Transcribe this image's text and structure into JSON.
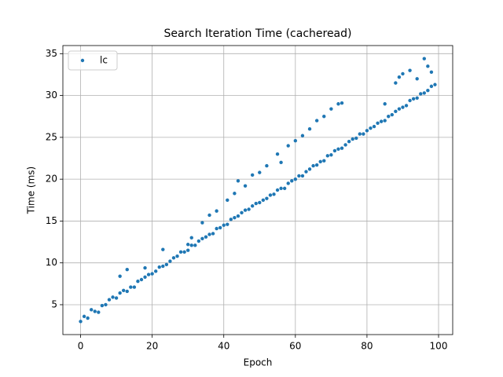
{
  "chart_data": {
    "type": "scatter",
    "title": "Search Iteration Time (cacheread)",
    "x_label": "Epoch",
    "y_label": "Time (ms)",
    "xlim": [
      -4.95,
      103.95
    ],
    "ylim": [
      1.43,
      35.97
    ],
    "xticks": [
      0,
      20,
      40,
      60,
      80,
      100
    ],
    "yticks": [
      5,
      10,
      15,
      20,
      25,
      30,
      35
    ],
    "grid": true,
    "legend": "upper left",
    "series": [
      {
        "name": "lc",
        "color": "#1f77b4",
        "x": [
          0,
          1,
          2,
          3,
          4,
          5,
          6,
          7,
          8,
          9,
          10,
          11,
          12,
          13,
          14,
          15,
          16,
          17,
          18,
          19,
          20,
          21,
          22,
          23,
          24,
          25,
          26,
          27,
          28,
          29,
          30,
          31,
          32,
          33,
          34,
          35,
          36,
          37,
          38,
          39,
          40,
          41,
          42,
          43,
          44,
          45,
          46,
          47,
          48,
          49,
          50,
          51,
          52,
          53,
          54,
          55,
          56,
          57,
          58,
          59,
          60,
          61,
          62,
          63,
          64,
          65,
          66,
          67,
          68,
          69,
          70,
          71,
          72,
          73,
          74,
          75,
          76,
          77,
          78,
          79,
          80,
          81,
          82,
          83,
          84,
          85,
          86,
          87,
          88,
          89,
          90,
          91,
          92,
          93,
          94,
          95,
          96,
          97,
          98,
          99,
          11,
          13,
          18,
          23,
          30,
          31,
          34,
          36,
          38,
          41,
          43,
          44,
          46,
          48,
          50,
          52,
          55,
          56,
          58,
          60,
          62,
          64,
          66,
          68,
          70,
          72,
          73,
          85,
          88,
          90,
          92,
          94,
          96,
          97,
          98,
          89
        ],
        "values": [
          3.0,
          3.6,
          3.4,
          4.4,
          4.2,
          4.1,
          4.9,
          5.0,
          5.6,
          5.9,
          5.8,
          6.4,
          6.7,
          6.6,
          7.1,
          7.1,
          7.8,
          8.0,
          8.3,
          8.6,
          8.7,
          9.0,
          9.5,
          9.6,
          9.8,
          10.2,
          10.6,
          10.8,
          11.3,
          11.3,
          11.5,
          12.1,
          12.1,
          12.6,
          12.9,
          13.1,
          13.4,
          13.5,
          14.1,
          14.2,
          14.5,
          14.6,
          15.2,
          15.4,
          15.6,
          16.0,
          16.3,
          16.4,
          16.8,
          17.1,
          17.2,
          17.5,
          17.7,
          18.1,
          18.2,
          18.7,
          18.9,
          18.9,
          19.5,
          19.8,
          20.0,
          20.4,
          20.4,
          20.9,
          21.2,
          21.6,
          21.7,
          22.1,
          22.2,
          22.8,
          22.9,
          23.4,
          23.6,
          23.7,
          24.1,
          24.5,
          24.8,
          24.9,
          25.4,
          25.4,
          25.8,
          26.1,
          26.3,
          26.7,
          26.9,
          27.0,
          27.5,
          27.7,
          28.1,
          28.4,
          28.6,
          28.8,
          29.4,
          29.6,
          29.7,
          30.2,
          30.3,
          30.6,
          31.1,
          31.3,
          8.4,
          9.2,
          9.4,
          11.6,
          12.2,
          13.0,
          14.8,
          15.7,
          16.2,
          17.5,
          18.3,
          19.8,
          19.2,
          20.5,
          20.8,
          21.6,
          23.0,
          22.0,
          24.0,
          24.6,
          25.2,
          26.0,
          27.0,
          27.5,
          28.4,
          29.0,
          29.1,
          29.0,
          31.5,
          32.6,
          33.0,
          32.0,
          34.4,
          33.5,
          32.8,
          32.2
        ]
      }
    ]
  }
}
